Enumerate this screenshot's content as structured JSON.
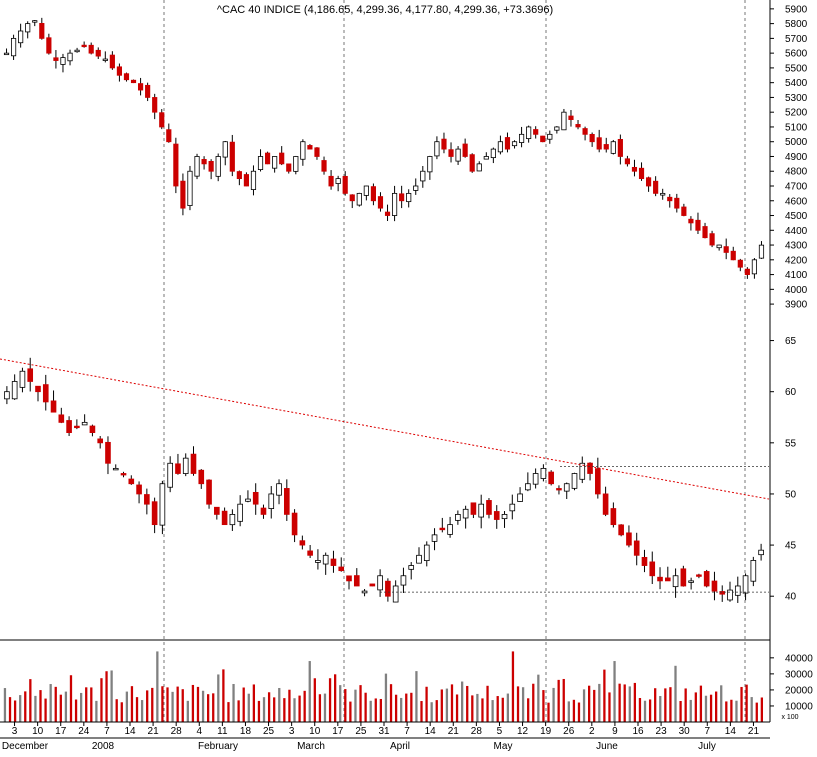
{
  "colors": {
    "background": "#ffffff",
    "up_candle": "#ffffff",
    "down_candle": "#cc0000",
    "wick": "#000000",
    "vertical_grid": "#777777",
    "moving_average": "#dd0000",
    "support_line": "#333333",
    "axis": "#000000"
  },
  "chart_data": [
    {
      "type": "candlestick",
      "panel": "price",
      "title": "^CAC 40 INDICE (4,186.65, 4,299.36, 4,177.80, 4,299.36, +73.3696)",
      "ylim": [
        3860,
        5960
      ],
      "y_ticks": [
        3900,
        4000,
        4100,
        4200,
        4300,
        4400,
        4500,
        4600,
        4700,
        4800,
        4900,
        5000,
        5100,
        5200,
        5300,
        5400,
        5500,
        5600,
        5700,
        5800,
        5900
      ],
      "closes": [
        5600,
        5700,
        5750,
        5800,
        5820,
        5700,
        5600,
        5550,
        5570,
        5600,
        5620,
        5650,
        5600,
        5580,
        5560,
        5500,
        5450,
        5420,
        5400,
        5350,
        5300,
        5200,
        5100,
        5000,
        4700,
        4550,
        4800,
        4900,
        4850,
        4800,
        4900,
        5000,
        4800,
        4750,
        4700,
        4800,
        4900,
        4850,
        4900,
        4850,
        4800,
        4900,
        5000,
        4950,
        4900,
        4800,
        4700,
        4750,
        4650,
        4600,
        4650,
        4700,
        4600,
        4550,
        4500,
        4650,
        4600,
        4650,
        4700,
        4800,
        4900,
        5000,
        4950,
        4900,
        4950,
        4900,
        4800,
        4850,
        4900,
        4950,
        5000,
        4950,
        5000,
        5050,
        5100,
        5050,
        5000,
        5050,
        5100,
        5200,
        5150,
        5100,
        5050,
        5000,
        4950,
        4950,
        5000,
        4900,
        4850,
        4800,
        4750,
        4700,
        4650,
        4650,
        4600,
        4550,
        4500,
        4450,
        4400,
        4350,
        4300,
        4300,
        4250,
        4200,
        4150,
        4100,
        4200,
        4299.36
      ]
    },
    {
      "type": "candlestick",
      "panel": "indicator",
      "ylim": [
        36.5,
        67.5
      ],
      "y_ticks": [
        40,
        45,
        50,
        55,
        60,
        65
      ],
      "moving_average": {
        "start": 63.2,
        "end": 49.5
      },
      "reference_lines": [
        52.7,
        40.4
      ],
      "closes": [
        60,
        61,
        62,
        61,
        60,
        59,
        58,
        57,
        56,
        56.5,
        57,
        56,
        55,
        53,
        52.5,
        52,
        51,
        50,
        49,
        47,
        51,
        53,
        52,
        53.5,
        52,
        51,
        49,
        48,
        47,
        48,
        49,
        49.5,
        49,
        48,
        50,
        51,
        48,
        46,
        45,
        44,
        43.5,
        44,
        43,
        42.5,
        41.5,
        41,
        40.5,
        41,
        42,
        40,
        41,
        42,
        43,
        44,
        45,
        46,
        46.5,
        47,
        48,
        48.5,
        48,
        49,
        48,
        47.5,
        48,
        49,
        50,
        51,
        52,
        52.5,
        51,
        50.5,
        51,
        52,
        53,
        52,
        50,
        48,
        47,
        46,
        45,
        44,
        43,
        42,
        41.5,
        41.5,
        42,
        41,
        41.5,
        42,
        41,
        40.5,
        40.2,
        40.6,
        41,
        42,
        43.5,
        44.5
      ]
    },
    {
      "type": "bar",
      "panel": "volume",
      "ylim": [
        0,
        48000
      ],
      "y_ticks": [
        10000,
        20000,
        30000,
        40000
      ],
      "unit_label": "x 100"
    }
  ],
  "x_axis": {
    "day_labels": [
      "3",
      "10",
      "17",
      "24",
      "7",
      "14",
      "21",
      "28",
      "4",
      "11",
      "18",
      "25",
      "3",
      "10",
      "17",
      "25",
      "31",
      "7",
      "14",
      "21",
      "28",
      "5",
      "12",
      "19",
      "26",
      "2",
      "9",
      "16",
      "23",
      "30",
      "7",
      "14",
      "21"
    ],
    "month_labels": [
      "December",
      "2008",
      "February",
      "March",
      "April",
      "May",
      "June",
      "July"
    ]
  }
}
